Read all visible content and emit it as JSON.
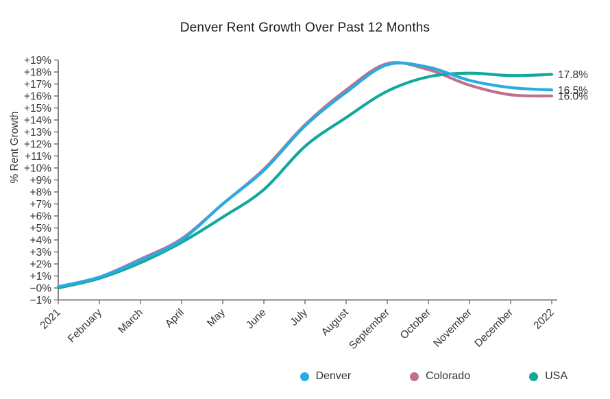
{
  "title": "Denver Rent Growth Over Past 12 Months",
  "chart_data": {
    "type": "line",
    "title": "Denver Rent Growth Over Past 12 Months",
    "xlabel": "",
    "ylabel": "% Rent Growth",
    "x_categories": [
      "2021",
      "February",
      "March",
      "April",
      "May",
      "June",
      "July",
      "August",
      "September",
      "October",
      "November",
      "December",
      "2022"
    ],
    "ylim": [
      -1,
      19
    ],
    "ytick_step": 1,
    "ytick_labels": [
      "+19%",
      "+18%",
      "+17%",
      "+16%",
      "+15%",
      "+14%",
      "+13%",
      "+12%",
      "+11%",
      "+10%",
      "+9%",
      "+8%",
      "+7%",
      "+6%",
      "+5%",
      "+4%",
      "+3%",
      "+2%",
      "+1%",
      "−0%",
      "−1%"
    ],
    "grid": false,
    "legend_position": "bottom",
    "axis_color": "#6e6e6e",
    "tick_label_color": "#333333",
    "annotation_color": "#333333",
    "series": [
      {
        "name": "Denver",
        "color": "#29abe2",
        "values": [
          0.1,
          0.9,
          2.3,
          4.0,
          7.0,
          9.8,
          13.5,
          16.3,
          18.6,
          18.4,
          17.3,
          16.7,
          16.5
        ],
        "end_label": "16.5%"
      },
      {
        "name": "Colorado",
        "color": "#c0718f",
        "values": [
          0.1,
          0.9,
          2.4,
          4.1,
          7.0,
          9.9,
          13.6,
          16.5,
          18.7,
          18.2,
          16.9,
          16.1,
          16.0
        ],
        "end_label": "16.0%"
      },
      {
        "name": "USA",
        "color": "#12a89a",
        "values": [
          0.0,
          0.8,
          2.1,
          3.8,
          5.9,
          8.2,
          11.8,
          14.2,
          16.4,
          17.6,
          17.9,
          17.7,
          17.8
        ],
        "end_label": "17.8%"
      }
    ]
  }
}
